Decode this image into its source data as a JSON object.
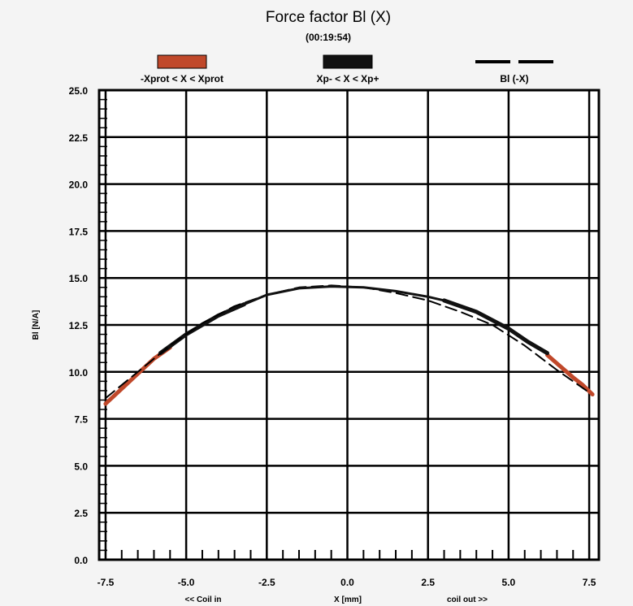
{
  "chart_data": {
    "type": "line",
    "title": "Force factor Bl (X)",
    "subtitle": "(00:19:54)",
    "xlabel": "X [mm]",
    "xlabel_left": "<< Coil in",
    "xlabel_right": "coil out >>",
    "ylabel": "Bl [N/A]",
    "xlim": [
      -7.7,
      7.8
    ],
    "ylim": [
      0,
      25
    ],
    "x_ticks": [
      "-7.5",
      "-5.0",
      "-2.5",
      "0.0",
      "2.5",
      "5.0",
      "7.5"
    ],
    "x_tick_values": [
      -7.5,
      -5.0,
      -2.5,
      0.0,
      2.5,
      5.0,
      7.5
    ],
    "y_ticks": [
      "0.0",
      "2.5",
      "5.0",
      "7.5",
      "10.0",
      "12.5",
      "15.0",
      "17.5",
      "20.0",
      "22.5",
      "25.0"
    ],
    "y_tick_values": [
      0,
      2.5,
      5,
      7.5,
      10,
      12.5,
      15,
      17.5,
      20,
      22.5,
      25
    ],
    "grid": true,
    "legend_position": "top",
    "series": [
      {
        "name": "-Xprot < X < Xprot",
        "color": "#c0482a",
        "style": "thick",
        "x": [
          -7.5,
          -7.0,
          -6.5,
          -6.0,
          -5.5
        ],
        "y": [
          8.3,
          9.1,
          9.9,
          10.7,
          11.3
        ]
      },
      {
        "name": "-Xprot < X < Xprot",
        "color": "#c0482a",
        "style": "thick",
        "x": [
          6.2,
          6.6,
          7.0,
          7.3,
          7.6
        ],
        "y": [
          10.9,
          10.3,
          9.7,
          9.3,
          8.8
        ]
      },
      {
        "name": "Xp- < X < Xp+",
        "color": "#111111",
        "style": "thick",
        "x": [
          -5.8,
          -5.0,
          -4.0,
          -3.2
        ],
        "y": [
          11.0,
          12.0,
          13.0,
          13.6
        ]
      },
      {
        "name": "Xp- < X < Xp+",
        "color": "#111111",
        "style": "thick",
        "x": [
          3.0,
          4.0,
          5.0,
          5.6,
          6.2
        ],
        "y": [
          13.8,
          13.2,
          12.3,
          11.6,
          11.0
        ]
      },
      {
        "name": "Bl (-X)",
        "color": "#000000",
        "style": "dashed",
        "x": [
          -7.5,
          -6.5,
          -5.5,
          -4.5,
          -3.5,
          -2.5,
          -1.5,
          -0.5,
          0.5,
          1.5,
          2.5,
          3.5,
          4.5,
          5.5,
          6.5,
          7.5
        ],
        "y": [
          8.6,
          10.0,
          11.4,
          12.6,
          13.5,
          14.1,
          14.5,
          14.6,
          14.5,
          14.2,
          13.8,
          13.2,
          12.5,
          11.4,
          10.1,
          8.9
        ]
      },
      {
        "name": "",
        "color": "#111111",
        "style": "thin",
        "x": [
          -3.2,
          -2.5,
          -1.5,
          -0.5,
          0.5,
          1.5,
          2.5,
          3.0
        ],
        "y": [
          13.6,
          14.1,
          14.45,
          14.55,
          14.5,
          14.3,
          14.0,
          13.8
        ]
      }
    ],
    "legend": [
      {
        "label": "-Xprot < X < Xprot",
        "color": "#c0482a",
        "kind": "swatch"
      },
      {
        "label": "Xp- < X < Xp+",
        "color": "#111111",
        "kind": "swatch"
      },
      {
        "label": "Bl (-X)",
        "color": "#000000",
        "kind": "dashed"
      }
    ]
  }
}
